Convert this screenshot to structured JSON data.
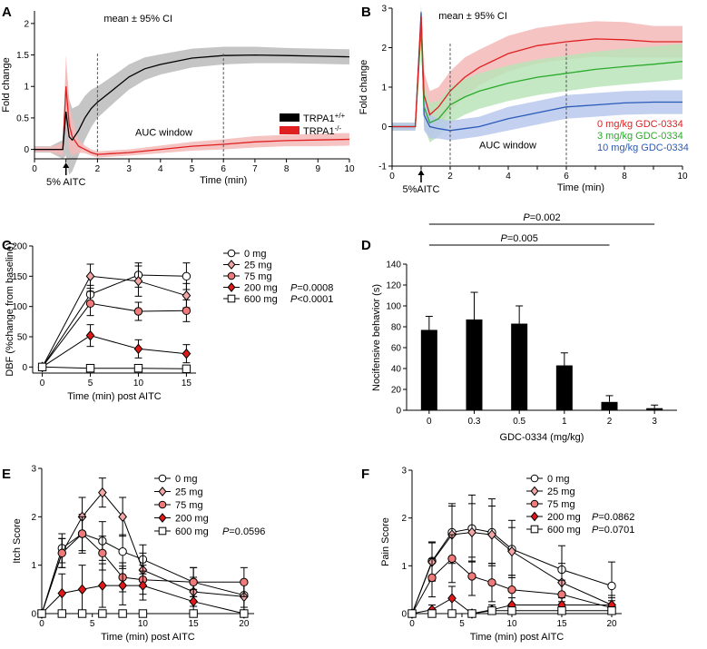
{
  "panels": [
    {
      "id": "A",
      "letter": "A"
    },
    {
      "id": "B",
      "letter": "B"
    },
    {
      "id": "C",
      "letter": "C"
    },
    {
      "id": "D",
      "letter": "D"
    },
    {
      "id": "E",
      "letter": "E"
    },
    {
      "id": "F",
      "letter": "F"
    }
  ],
  "chart_data": [
    {
      "id": "A",
      "type": "line",
      "ylabel": "Fold change",
      "xlabel": "Time (min)",
      "xlim": [
        0,
        10
      ],
      "ylim": [
        -0.15,
        2.2
      ],
      "xticks": [
        0,
        1,
        2,
        3,
        4,
        5,
        6,
        7,
        8,
        9,
        10
      ],
      "xtick_labels": [
        "0",
        "",
        "2",
        "3",
        "4",
        "5",
        "6",
        "7",
        "8",
        "9",
        "10"
      ],
      "yticks": [
        0,
        0.5,
        1,
        1.5,
        2
      ],
      "ytick_labels": [
        "0",
        "0.5",
        "1",
        "1.5",
        "2"
      ],
      "annotations": {
        "ci": "mean ± 95% CI",
        "stim": "5% AITC",
        "auc": "AUC window"
      },
      "auc_window": [
        2,
        6
      ],
      "stim_time": 1,
      "series": [
        {
          "name": "TRPA1+/+",
          "label_main": "TRPA1",
          "label_sup": "+/+",
          "color": "#000000",
          "band": "#bbbbbb",
          "x": [
            0,
            0.5,
            0.9,
            1.0,
            1.1,
            1.2,
            1.4,
            1.6,
            1.8,
            2.0,
            2.5,
            3.0,
            3.5,
            4.0,
            5.0,
            6.0,
            7.0,
            8.0,
            9.0,
            10.0
          ],
          "y": [
            0,
            0,
            0,
            0.6,
            0.2,
            0.15,
            0.3,
            0.5,
            0.65,
            0.75,
            0.95,
            1.15,
            1.28,
            1.35,
            1.45,
            1.49,
            1.5,
            1.49,
            1.48,
            1.47
          ],
          "ci": [
            0.05,
            0.05,
            0.15,
            0.7,
            0.6,
            0.5,
            0.4,
            0.35,
            0.3,
            0.25,
            0.22,
            0.2,
            0.18,
            0.16,
            0.15,
            0.14,
            0.13,
            0.12,
            0.12,
            0.12
          ]
        },
        {
          "name": "TRPA1-/-",
          "label_main": "TRPA1",
          "label_sup": "-/-",
          "color": "#e02020",
          "band": "#f4b8b8",
          "x": [
            0,
            0.5,
            0.9,
            1.0,
            1.1,
            1.2,
            1.4,
            1.6,
            1.8,
            2.0,
            3.0,
            4.0,
            5.0,
            6.0,
            7.0,
            8.0,
            9.0,
            10.0
          ],
          "y": [
            0,
            0,
            0,
            1.0,
            0.4,
            0.2,
            0.05,
            0,
            -0.05,
            -0.08,
            -0.05,
            0.0,
            0.05,
            0.08,
            0.12,
            0.14,
            0.15,
            0.16
          ],
          "ci": [
            0.04,
            0.04,
            0.1,
            0.5,
            0.4,
            0.3,
            0.1,
            0.06,
            0.05,
            0.05,
            0.05,
            0.06,
            0.07,
            0.08,
            0.09,
            0.09,
            0.1,
            0.1
          ]
        }
      ]
    },
    {
      "id": "B",
      "type": "line",
      "ylabel": "Fold change",
      "xlabel": "Time (min)",
      "xlim": [
        0,
        10
      ],
      "ylim": [
        -1,
        3
      ],
      "xticks": [
        0,
        1,
        2,
        3,
        4,
        5,
        6,
        7,
        8,
        9,
        10
      ],
      "xtick_labels": [
        "0",
        "",
        "2",
        "",
        "4",
        "",
        "6",
        "",
        "8",
        "",
        "10"
      ],
      "yticks": [
        -1,
        0,
        1,
        2,
        3
      ],
      "ytick_labels": [
        "-1",
        "0",
        "1",
        "2",
        "3"
      ],
      "annotations": {
        "ci": "mean ± 95% CI",
        "stim": "5%AITC",
        "auc": "AUC window"
      },
      "auc_window": [
        2,
        6
      ],
      "stim_time": 1,
      "series": [
        {
          "name": "0 mg/kg GDC-0334",
          "color": "#e02020",
          "band": "#f4b8b8",
          "x": [
            0,
            0.8,
            1.0,
            1.1,
            1.3,
            1.6,
            2.0,
            2.5,
            3.0,
            4.0,
            5.0,
            6.0,
            7.0,
            8.0,
            9.0,
            10.0
          ],
          "y": [
            0,
            0,
            2.8,
            0.8,
            0.3,
            0.5,
            0.9,
            1.25,
            1.5,
            1.85,
            2.05,
            2.15,
            2.22,
            2.2,
            2.15,
            2.15
          ],
          "ci": [
            0.1,
            0.1,
            0.2,
            0.6,
            0.6,
            0.5,
            0.5,
            0.5,
            0.45,
            0.45,
            0.45,
            0.45,
            0.45,
            0.45,
            0.4,
            0.4
          ]
        },
        {
          "name": "3 mg/kg GDC-0334",
          "color": "#2aaa2a",
          "band": "#b8e4b8",
          "x": [
            0,
            0.8,
            1.0,
            1.1,
            1.3,
            1.6,
            2.0,
            2.5,
            3.0,
            4.0,
            5.0,
            6.0,
            7.0,
            8.0,
            9.0,
            10.0
          ],
          "y": [
            0,
            0,
            2.5,
            0.5,
            0.1,
            0.2,
            0.55,
            0.75,
            0.9,
            1.1,
            1.25,
            1.35,
            1.45,
            1.52,
            1.58,
            1.65
          ],
          "ci": [
            0.1,
            0.1,
            0.2,
            0.5,
            0.5,
            0.45,
            0.45,
            0.45,
            0.45,
            0.45,
            0.45,
            0.45,
            0.45,
            0.45,
            0.45,
            0.45
          ]
        },
        {
          "name": "10 mg/kg GDC-0334",
          "color": "#2a5ab8",
          "band": "#b8c8ec",
          "x": [
            0,
            0.8,
            1.0,
            1.1,
            1.3,
            1.6,
            2.0,
            3.0,
            4.0,
            5.0,
            6.0,
            7.0,
            8.0,
            9.0,
            10.0
          ],
          "y": [
            0,
            0,
            2.9,
            0.3,
            0,
            -0.05,
            -0.1,
            0.0,
            0.2,
            0.35,
            0.5,
            0.55,
            0.6,
            0.62,
            0.62
          ],
          "ci": [
            0.1,
            0.1,
            0.2,
            0.4,
            0.3,
            0.25,
            0.25,
            0.25,
            0.3,
            0.3,
            0.3,
            0.3,
            0.3,
            0.3,
            0.3
          ]
        }
      ]
    },
    {
      "id": "C",
      "type": "line",
      "ylabel": "DBF (%change from baseline)",
      "xlabel": "Time (min) post AITC",
      "xlim": [
        -1,
        16
      ],
      "ylim": [
        -10,
        200
      ],
      "xticks": [
        0,
        5,
        10,
        15
      ],
      "xtick_labels": [
        "0",
        "5",
        "10",
        "15"
      ],
      "yticks": [
        0,
        50,
        100,
        150,
        200
      ],
      "ytick_labels": [
        "0",
        "50",
        "100",
        "150",
        "200"
      ],
      "series": [
        {
          "name": "0 mg",
          "marker": "circle",
          "fill": "#ffffff",
          "x": [
            0,
            5,
            10,
            15
          ],
          "y": [
            0,
            120,
            152,
            150
          ],
          "err": [
            3,
            15,
            20,
            22
          ],
          "p": ""
        },
        {
          "name": "25 mg",
          "marker": "diamond",
          "fill": "#f2a6a6",
          "x": [
            0,
            5,
            10,
            15
          ],
          "y": [
            0,
            150,
            142,
            118
          ],
          "err": [
            3,
            20,
            25,
            20
          ],
          "p": ""
        },
        {
          "name": "75 mg",
          "marker": "circle",
          "fill": "#ef7a7a",
          "x": [
            0,
            5,
            10,
            15
          ],
          "y": [
            0,
            105,
            92,
            93
          ],
          "err": [
            3,
            20,
            15,
            18
          ],
          "p": ""
        },
        {
          "name": "200 mg",
          "marker": "diamond",
          "fill": "#e01818",
          "x": [
            0,
            5,
            10,
            15
          ],
          "y": [
            0,
            52,
            30,
            22
          ],
          "err": [
            3,
            18,
            15,
            15
          ],
          "p": "P=0.0008"
        },
        {
          "name": "600 mg",
          "marker": "square",
          "fill": "#ffffff",
          "x": [
            0,
            5,
            10,
            15
          ],
          "y": [
            0,
            -2,
            -2,
            -3
          ],
          "err": [
            2,
            3,
            3,
            3
          ],
          "p": "P<0.0001"
        }
      ]
    },
    {
      "id": "D",
      "type": "bar",
      "ylabel": "Nocifensive behavior (s)",
      "xlabel": "GDC-0334 (mg/kg)",
      "categories": [
        "0",
        "0.3",
        "0.5",
        "1",
        "2",
        "3"
      ],
      "values": [
        77,
        87,
        83,
        43,
        8,
        2
      ],
      "errors": [
        13,
        26,
        17,
        12,
        6,
        3
      ],
      "ylim": [
        0,
        140
      ],
      "yticks": [
        0,
        20,
        40,
        60,
        80,
        100,
        120,
        140
      ],
      "ytick_labels": [
        "0",
        "20",
        "40",
        "60",
        "80",
        "100",
        "120",
        "140"
      ],
      "brackets": [
        {
          "from": 0,
          "to": 4,
          "label_p": "P",
          "label_v": "=0.005"
        },
        {
          "from": 0,
          "to": 5,
          "label_p": "P",
          "label_v": "=0.002"
        }
      ]
    },
    {
      "id": "E",
      "type": "line",
      "ylabel": "Itch Score",
      "xlabel": "Time (min) post AITC",
      "xlim": [
        0,
        21
      ],
      "ylim": [
        0,
        3
      ],
      "xticks": [
        0,
        5,
        10,
        15,
        20
      ],
      "xtick_labels": [
        "0",
        "5",
        "10",
        "15",
        "20"
      ],
      "yticks": [
        0,
        1,
        2,
        3
      ],
      "ytick_labels": [
        "0",
        "1",
        "2",
        "3"
      ],
      "series": [
        {
          "name": "0 mg",
          "marker": "circle",
          "fill": "#ffffff",
          "x": [
            0,
            2,
            4,
            6,
            8,
            10,
            15,
            20
          ],
          "y": [
            0,
            1.35,
            1.65,
            1.5,
            1.28,
            1.12,
            0.65,
            0.38
          ],
          "err": [
            0,
            0.3,
            0.4,
            0.4,
            0.35,
            0.3,
            0.3,
            0.25
          ],
          "p": ""
        },
        {
          "name": "25 mg",
          "marker": "diamond",
          "fill": "#f2a6a6",
          "x": [
            0,
            2,
            4,
            6,
            8,
            10,
            15,
            20
          ],
          "y": [
            0,
            1.25,
            2.0,
            2.5,
            2.0,
            0.9,
            0.45,
            0.35
          ],
          "err": [
            0,
            0.3,
            0.4,
            0.3,
            0.4,
            0.35,
            0.3,
            0.3
          ],
          "p": ""
        },
        {
          "name": "75 mg",
          "marker": "circle",
          "fill": "#ef7a7a",
          "x": [
            0,
            2,
            4,
            6,
            8,
            10,
            15,
            20
          ],
          "y": [
            0,
            1.25,
            1.65,
            1.25,
            0.75,
            0.7,
            0.65,
            0.65
          ],
          "err": [
            0,
            0.3,
            0.35,
            0.35,
            0.3,
            0.3,
            0.3,
            0.3
          ],
          "p": ""
        },
        {
          "name": "200 mg",
          "marker": "diamond",
          "fill": "#e01818",
          "x": [
            0,
            2,
            4,
            6,
            8,
            10,
            15,
            20
          ],
          "y": [
            0,
            0.42,
            0.5,
            0.58,
            0.58,
            0.58,
            0.25,
            0.0
          ],
          "err": [
            0,
            0.4,
            0.5,
            0.45,
            0.4,
            0.3,
            0.25,
            0
          ],
          "p": ""
        },
        {
          "name": "600 mg",
          "marker": "square",
          "fill": "#ffffff",
          "x": [
            0,
            2,
            4,
            6,
            8,
            10,
            15,
            20
          ],
          "y": [
            0,
            0,
            0,
            0,
            0,
            0,
            0,
            0
          ],
          "err": [
            0,
            0,
            0,
            0,
            0,
            0,
            0,
            0
          ],
          "p": "P=0.0596"
        }
      ]
    },
    {
      "id": "F",
      "type": "line",
      "ylabel": "Pain Score",
      "xlabel": "Time (min) post AITC",
      "xlim": [
        0,
        21
      ],
      "ylim": [
        0,
        3
      ],
      "xticks": [
        0,
        5,
        10,
        15,
        20
      ],
      "xtick_labels": [
        "0",
        "5",
        "10",
        "15",
        "20"
      ],
      "yticks": [
        0,
        1,
        2,
        3
      ],
      "ytick_labels": [
        "0",
        "1",
        "2",
        "3"
      ],
      "series": [
        {
          "name": "0 mg",
          "marker": "circle",
          "fill": "#ffffff",
          "x": [
            0,
            2,
            4,
            6,
            8,
            10,
            15,
            20
          ],
          "y": [
            0,
            1.1,
            1.7,
            1.78,
            1.7,
            1.35,
            0.92,
            0.58
          ],
          "err": [
            0,
            0.4,
            0.6,
            0.7,
            0.7,
            0.6,
            0.5,
            0.5
          ],
          "p": ""
        },
        {
          "name": "25 mg",
          "marker": "diamond",
          "fill": "#f2a6a6",
          "x": [
            0,
            2,
            4,
            6,
            8,
            10,
            15,
            20
          ],
          "y": [
            0,
            1.08,
            1.65,
            1.7,
            1.65,
            1.3,
            0.65,
            0.18
          ],
          "err": [
            0,
            0.4,
            0.6,
            0.6,
            0.6,
            0.5,
            0.4,
            0.2
          ],
          "p": ""
        },
        {
          "name": "75 mg",
          "marker": "circle",
          "fill": "#ef7a7a",
          "x": [
            0,
            2,
            4,
            6,
            8,
            10,
            15,
            20
          ],
          "y": [
            0,
            0.75,
            1.15,
            0.78,
            0.65,
            0.5,
            0.4,
            0.12
          ],
          "err": [
            0,
            0.4,
            0.5,
            0.4,
            0.4,
            0.3,
            0.3,
            0.15
          ],
          "p": ""
        },
        {
          "name": "200 mg",
          "marker": "diamond",
          "fill": "#e01818",
          "x": [
            0,
            2,
            4,
            6,
            8,
            10,
            15,
            20
          ],
          "y": [
            0,
            0.08,
            0.32,
            0.0,
            0.08,
            0.18,
            0.18,
            0.18
          ],
          "err": [
            0,
            0.1,
            0.25,
            0.05,
            0.1,
            0.15,
            0.15,
            0.15
          ],
          "p": "P=0.0862"
        },
        {
          "name": "600 mg",
          "marker": "square",
          "fill": "#ffffff",
          "x": [
            0,
            2,
            4,
            6,
            8,
            10,
            15,
            20
          ],
          "y": [
            0,
            0,
            0,
            0,
            0.06,
            0.06,
            0.06,
            0.06
          ],
          "err": [
            0,
            0,
            0,
            0,
            0.06,
            0.06,
            0.06,
            0.06
          ],
          "p": "P=0.0701"
        }
      ]
    }
  ]
}
